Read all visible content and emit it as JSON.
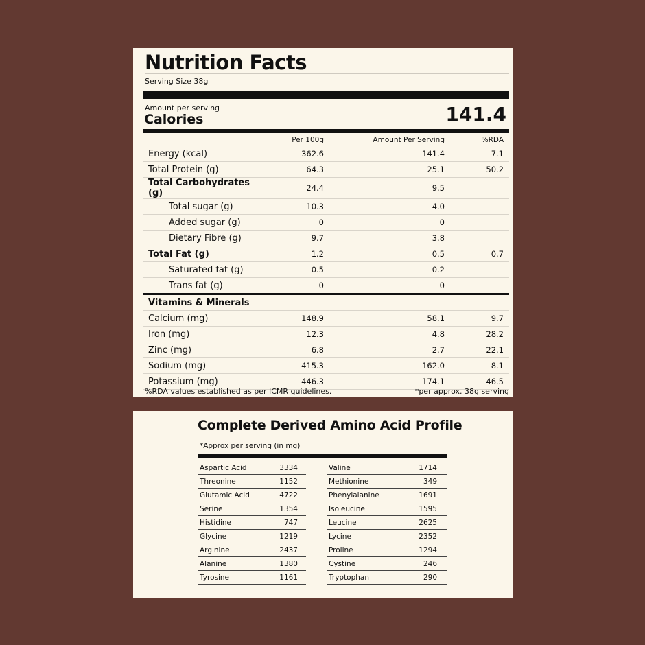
{
  "nutrition": {
    "title": "Nutrition Facts",
    "serving_size": "Serving Size 38g",
    "amount_per_serving_label": "Amount per serving",
    "calories_label": "Calories",
    "calories_value": "141.4",
    "columns": [
      "Per 100g",
      "Amount Per Serving",
      "%RDA"
    ],
    "rows": [
      {
        "name": "Energy (kcal)",
        "per100": "362.6",
        "serving": "141.4",
        "rda": "7.1"
      },
      {
        "name": "Total Protein (g)",
        "per100": "64.3",
        "serving": "25.1",
        "rda": "50.2"
      },
      {
        "name": "Total Carbohydrates (g)",
        "per100": "24.4",
        "serving": "9.5",
        "rda": ""
      },
      {
        "name": "Total sugar (g)",
        "per100": "10.3",
        "serving": "4.0",
        "rda": ""
      },
      {
        "name": "Added sugar (g)",
        "per100": "0",
        "serving": "0",
        "rda": ""
      },
      {
        "name": "Dietary Fibre (g)",
        "per100": "9.7",
        "serving": "3.8",
        "rda": ""
      },
      {
        "name": "Total Fat (g)",
        "per100": "1.2",
        "serving": "0.5",
        "rda": "0.7"
      },
      {
        "name": "Saturated fat (g)",
        "per100": "0.5",
        "serving": "0.2",
        "rda": ""
      },
      {
        "name": "Trans fat (g)",
        "per100": "0",
        "serving": "0",
        "rda": ""
      },
      {
        "name": "Vitamins & Minerals",
        "per100": "",
        "serving": "",
        "rda": ""
      },
      {
        "name": "Calcium (mg)",
        "per100": "148.9",
        "serving": "58.1",
        "rda": "9.7"
      },
      {
        "name": "Iron (mg)",
        "per100": "12.3",
        "serving": "4.8",
        "rda": "28.2"
      },
      {
        "name": "Zinc (mg)",
        "per100": "6.8",
        "serving": "2.7",
        "rda": "22.1"
      },
      {
        "name": "Sodium (mg)",
        "per100": "415.3",
        "serving": "162.0",
        "rda": "8.1"
      },
      {
        "name": "Potassium (mg)",
        "per100": "446.3",
        "serving": "174.1",
        "rda": "46.5"
      }
    ],
    "footnote_left": "%RDA values established as per ICMR guidelines.",
    "footnote_right": "*per approx. 38g serving"
  },
  "amino": {
    "title": "Complete Derived Amino Acid Profile",
    "note": "*Approx per serving (in mg)",
    "rows": [
      {
        "a_name": "Aspartic Acid",
        "a_val": "3334",
        "b_name": "Valine",
        "b_val": "1714"
      },
      {
        "a_name": "Threonine",
        "a_val": "1152",
        "b_name": "Methionine",
        "b_val": "349"
      },
      {
        "a_name": "Glutamic Acid",
        "a_val": "4722",
        "b_name": "Phenylalanine",
        "b_val": "1691"
      },
      {
        "a_name": "Serine",
        "a_val": "1354",
        "b_name": "Isoleucine",
        "b_val": "1595"
      },
      {
        "a_name": "Histidine",
        "a_val": "747",
        "b_name": "Leucine",
        "b_val": "2625"
      },
      {
        "a_name": "Glycine",
        "a_val": "1219",
        "b_name": "Lycine",
        "b_val": "2352"
      },
      {
        "a_name": "Arginine",
        "a_val": "2437",
        "b_name": "Proline",
        "b_val": "1294"
      },
      {
        "a_name": "Alanine",
        "a_val": "1380",
        "b_name": "Cystine",
        "b_val": "246"
      },
      {
        "a_name": "Tyrosine",
        "a_val": "1161",
        "b_name": "Tryptophan",
        "b_val": "290"
      }
    ]
  }
}
